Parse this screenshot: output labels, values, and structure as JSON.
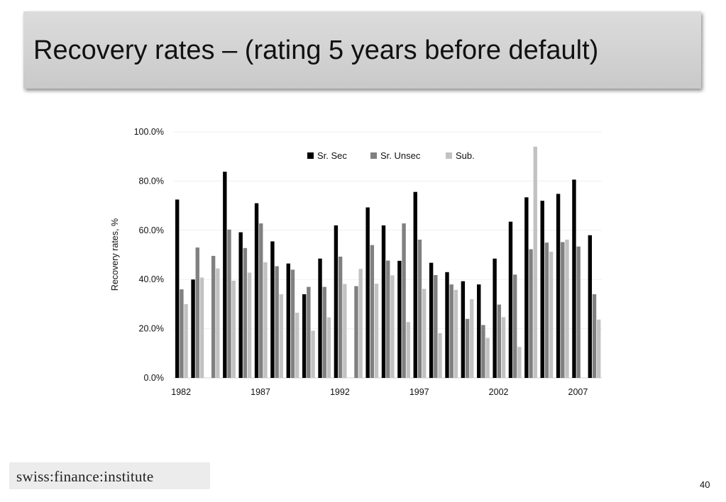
{
  "slide": {
    "title": "Recovery rates – (rating 5 years before default)",
    "page_number": "40",
    "logo_text": "swiss:finance:institute"
  },
  "chart_data": {
    "type": "bar",
    "x": [
      1982,
      1983,
      1984,
      1985,
      1986,
      1987,
      1988,
      1989,
      1990,
      1991,
      1992,
      1993,
      1994,
      1995,
      1996,
      1997,
      1998,
      1999,
      2000,
      2001,
      2002,
      2003,
      2004,
      2005,
      2006,
      2007,
      2008
    ],
    "x_tick_labels": [
      "1982",
      "1987",
      "1992",
      "1997",
      "2002",
      "2007"
    ],
    "y_tick_labels": [
      "0.0%",
      "20.0%",
      "40.0%",
      "60.0%",
      "80.0%",
      "100.0%"
    ],
    "ylabel": "Recovery rates, %",
    "xlabel": "",
    "ylim": [
      0,
      100
    ],
    "legend_position": "top-right",
    "grid": true,
    "series": [
      {
        "name": "Sr. Sec",
        "color": "#000000",
        "values": [
          72.5,
          40.0,
          null,
          83.8,
          59.2,
          71.0,
          55.5,
          46.5,
          34.0,
          48.5,
          62.0,
          null,
          69.3,
          62.0,
          47.6,
          75.6,
          46.8,
          43.0,
          39.3,
          38.0,
          48.5,
          63.5,
          73.4,
          72.0,
          74.8,
          80.6,
          58.0
        ]
      },
      {
        "name": "Sr. Unsec",
        "color": "#808080",
        "values": [
          36.0,
          53.0,
          49.6,
          60.3,
          52.8,
          62.8,
          45.4,
          44.0,
          37.0,
          37.0,
          49.3,
          37.3,
          54.0,
          47.7,
          62.8,
          56.2,
          41.8,
          38.0,
          24.0,
          21.5,
          29.8,
          42.0,
          52.3,
          55.0,
          55.2,
          53.4,
          34.0
        ]
      },
      {
        "name": "Sub.",
        "color": "#c2c2c2",
        "values": [
          30.0,
          40.8,
          44.5,
          39.5,
          42.8,
          47.0,
          34.0,
          26.5,
          19.2,
          24.6,
          38.2,
          44.3,
          38.3,
          41.7,
          22.7,
          36.2,
          18.2,
          35.8,
          32.0,
          16.3,
          24.7,
          12.6,
          94.0,
          51.3,
          56.2,
          null,
          23.7
        ]
      }
    ]
  }
}
